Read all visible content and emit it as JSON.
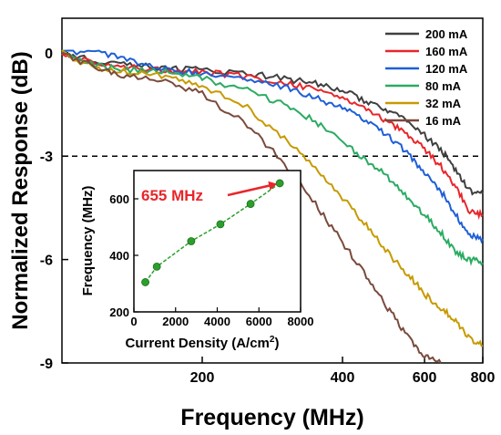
{
  "chart_data": [
    {
      "type": "line",
      "xlabel": "Frequency (MHz)",
      "ylabel": "Normalized Response (dB)",
      "x_scale": "log",
      "xlim": [
        100,
        800
      ],
      "ylim": [
        -9,
        1
      ],
      "x_ticks": [
        200,
        400,
        600,
        800
      ],
      "y_ticks": [
        0,
        -3,
        -6,
        -9
      ],
      "legend_position": "top-right",
      "reference_line": {
        "y": -3,
        "style": "dashed"
      },
      "series": [
        {
          "name": "200 mA",
          "color": "#404040",
          "x": [
            100,
            120,
            140,
            170,
            200,
            250,
            300,
            350,
            400,
            450,
            500,
            550,
            600,
            650,
            700,
            750,
            800
          ],
          "y": [
            0,
            -0.25,
            -0.35,
            -0.45,
            -0.5,
            -0.6,
            -0.75,
            -0.9,
            -1.1,
            -1.4,
            -1.7,
            -2.0,
            -2.4,
            -2.8,
            -3.4,
            -4.0,
            -4.1
          ]
        },
        {
          "name": "160 mA",
          "color": "#e8262b",
          "x": [
            100,
            120,
            140,
            170,
            200,
            250,
            300,
            350,
            400,
            450,
            500,
            550,
            600,
            650,
            700,
            750,
            800
          ],
          "y": [
            0,
            -0.35,
            -0.4,
            -0.5,
            -0.55,
            -0.7,
            -0.85,
            -1.05,
            -1.3,
            -1.6,
            -2.0,
            -2.35,
            -2.8,
            -3.3,
            -3.9,
            -4.6,
            -4.7
          ]
        },
        {
          "name": "120 mA",
          "color": "#1e5fd6",
          "x": [
            100,
            120,
            140,
            170,
            200,
            250,
            300,
            350,
            400,
            450,
            500,
            550,
            600,
            650,
            700,
            750,
            800
          ],
          "y": [
            0,
            0.05,
            -0.25,
            -0.5,
            -0.6,
            -0.8,
            -1.0,
            -1.3,
            -1.6,
            -2.0,
            -2.4,
            -2.9,
            -3.5,
            -4.0,
            -4.7,
            -5.3,
            -5.4
          ]
        },
        {
          "name": "80 mA",
          "color": "#2bab62",
          "x": [
            100,
            120,
            140,
            170,
            200,
            250,
            300,
            350,
            400,
            450,
            500,
            550,
            600,
            650,
            700,
            750,
            800
          ],
          "y": [
            0,
            -0.4,
            -0.5,
            -0.55,
            -0.75,
            -1.1,
            -1.5,
            -2.0,
            -2.6,
            -3.1,
            -3.6,
            -4.2,
            -4.7,
            -5.2,
            -5.8,
            -6.0,
            -6.1
          ]
        },
        {
          "name": "32 mA",
          "color": "#c79a00",
          "x": [
            100,
            120,
            140,
            170,
            200,
            250,
            300,
            350,
            400,
            450,
            500,
            550,
            600,
            650,
            700,
            750,
            800
          ],
          "y": [
            0,
            -0.5,
            -0.55,
            -0.7,
            -0.95,
            -1.6,
            -2.5,
            -3.3,
            -4.2,
            -5.0,
            -5.8,
            -6.4,
            -7.0,
            -7.4,
            -7.8,
            -8.3,
            -8.5
          ]
        },
        {
          "name": "16 mA",
          "color": "#7a4a3c",
          "x": [
            100,
            120,
            140,
            170,
            200,
            250,
            300,
            350,
            400,
            450,
            500,
            550,
            600,
            650
          ],
          "y": [
            0,
            -0.5,
            -0.7,
            -0.85,
            -1.2,
            -2.1,
            -3.2,
            -4.4,
            -5.5,
            -6.5,
            -7.4,
            -8.2,
            -8.8,
            -9.0
          ]
        }
      ]
    },
    {
      "type": "scatter",
      "xlabel": "Current Density (A/cm",
      "xlabel_sup": "2",
      "xlabel_suffix": ")",
      "ylabel": "Frequency (MHz)",
      "xlim": [
        0,
        8000
      ],
      "ylim": [
        200,
        700
      ],
      "x_ticks": [
        0,
        2000,
        4000,
        6000,
        8000
      ],
      "y_ticks": [
        200,
        400,
        600
      ],
      "series": [
        {
          "name": "",
          "color": "#2aa02a",
          "x": [
            550,
            1100,
            2750,
            4150,
            5600,
            7000
          ],
          "y": [
            305,
            360,
            450,
            510,
            582,
            655
          ]
        }
      ],
      "annotation": {
        "text": "655 MHz",
        "color": "#e8262b",
        "target_x": 7000,
        "target_y": 655
      }
    }
  ]
}
